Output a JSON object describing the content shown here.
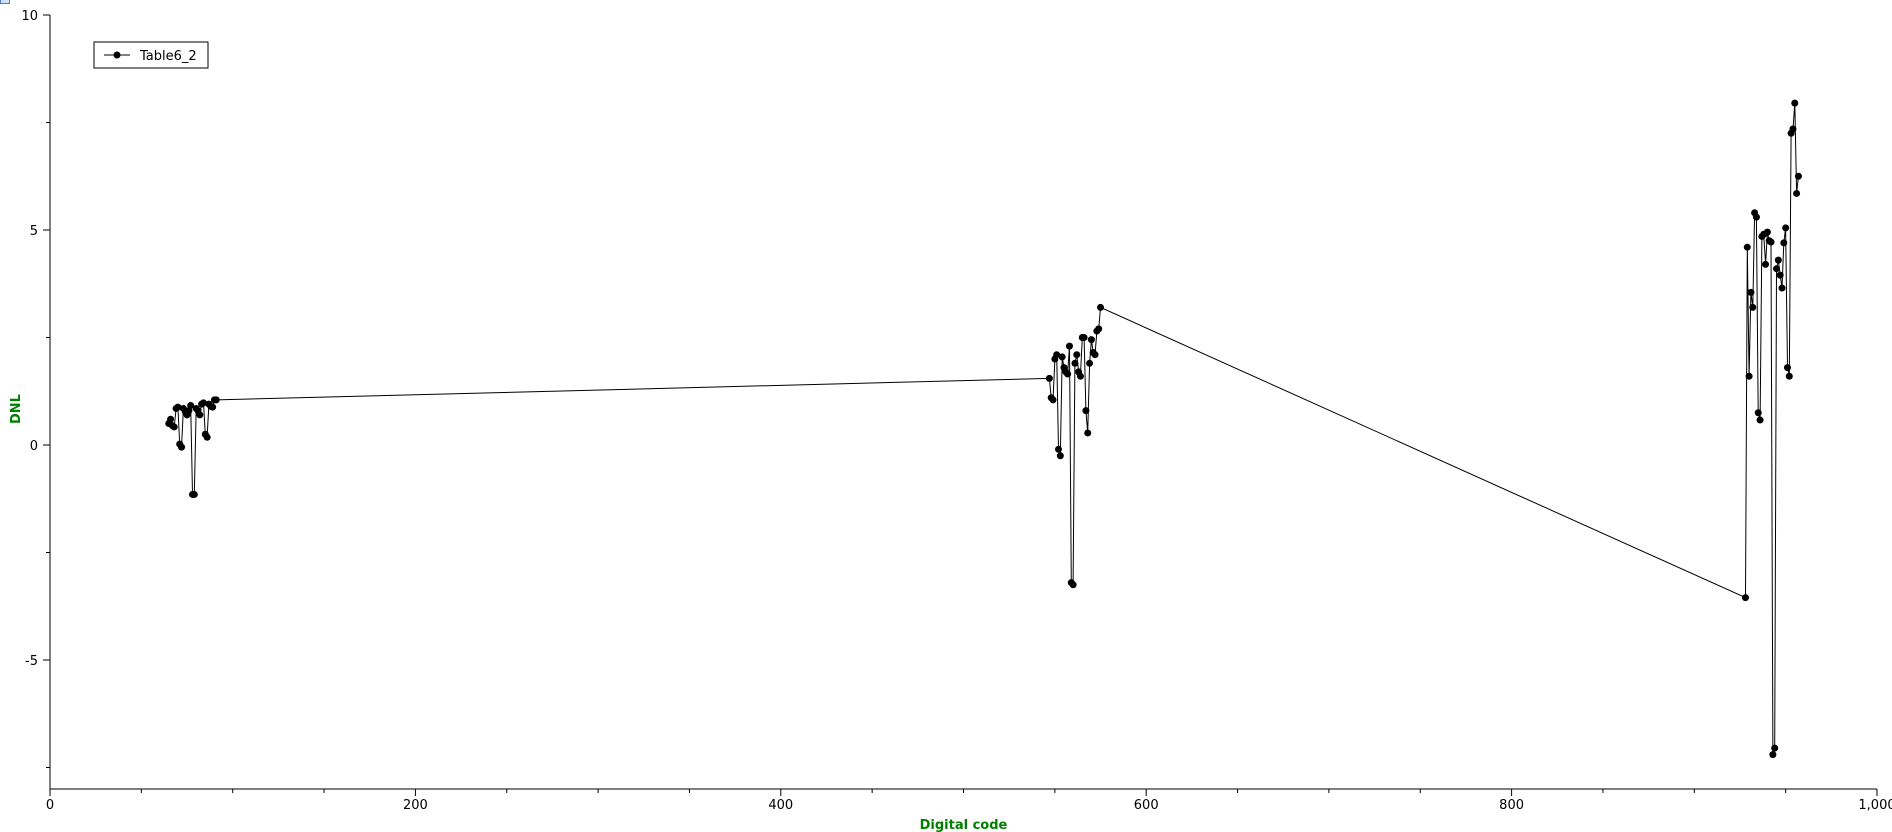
{
  "chart_data": {
    "type": "line",
    "title": "",
    "xlabel": "Digital code",
    "ylabel": "DNL",
    "xlim": [
      0,
      1000
    ],
    "ylim": [
      -8,
      10
    ],
    "x_ticks": [
      0,
      200,
      400,
      600,
      800,
      1000
    ],
    "x_tick_labels": [
      "0",
      "200",
      "400",
      "600",
      "800",
      "1,000"
    ],
    "y_ticks": [
      -5,
      0,
      5,
      10
    ],
    "y_tick_labels": [
      "-5",
      "0",
      "5",
      "10"
    ],
    "grid": false,
    "legend_position": "top-left",
    "series": [
      {
        "name": "Table6_2",
        "color": "#000000",
        "marker": "circle",
        "points": [
          [
            65,
            0.5
          ],
          [
            66,
            0.6
          ],
          [
            67,
            0.45
          ],
          [
            68,
            0.42
          ],
          [
            69,
            0.85
          ],
          [
            70,
            0.88
          ],
          [
            71,
            0.02
          ],
          [
            72,
            -0.05
          ],
          [
            73,
            0.85
          ],
          [
            74,
            0.78
          ],
          [
            75,
            0.7
          ],
          [
            76,
            0.8
          ],
          [
            77,
            0.92
          ],
          [
            78,
            -1.15
          ],
          [
            79,
            -1.15
          ],
          [
            80,
            0.85
          ],
          [
            81,
            0.8
          ],
          [
            82,
            0.7
          ],
          [
            83,
            0.95
          ],
          [
            84,
            0.98
          ],
          [
            85,
            0.25
          ],
          [
            86,
            0.18
          ],
          [
            87,
            0.95
          ],
          [
            88,
            0.9
          ],
          [
            89,
            0.88
          ],
          [
            90,
            1.05
          ],
          [
            91,
            1.05
          ],
          [
            547,
            1.55
          ],
          [
            548,
            1.1
          ],
          [
            549,
            1.05
          ],
          [
            550,
            2.0
          ],
          [
            551,
            2.1
          ],
          [
            552,
            -0.1
          ],
          [
            553,
            -0.25
          ],
          [
            554,
            2.05
          ],
          [
            555,
            1.8
          ],
          [
            556,
            1.7
          ],
          [
            557,
            1.65
          ],
          [
            558,
            2.3
          ],
          [
            559,
            -3.2
          ],
          [
            560,
            -3.25
          ],
          [
            561,
            1.9
          ],
          [
            562,
            2.1
          ],
          [
            563,
            1.7
          ],
          [
            564,
            1.6
          ],
          [
            565,
            2.5
          ],
          [
            566,
            2.5
          ],
          [
            567,
            0.8
          ],
          [
            568,
            0.28
          ],
          [
            569,
            1.9
          ],
          [
            570,
            2.45
          ],
          [
            571,
            2.15
          ],
          [
            572,
            2.1
          ],
          [
            573,
            2.65
          ],
          [
            574,
            2.7
          ],
          [
            575,
            3.2
          ],
          [
            928,
            -3.55
          ],
          [
            929,
            4.6
          ],
          [
            930,
            1.6
          ],
          [
            931,
            3.55
          ],
          [
            932,
            3.2
          ],
          [
            933,
            5.4
          ],
          [
            934,
            5.3
          ],
          [
            935,
            0.75
          ],
          [
            936,
            0.58
          ],
          [
            937,
            4.85
          ],
          [
            938,
            4.9
          ],
          [
            939,
            4.2
          ],
          [
            940,
            4.95
          ],
          [
            941,
            4.75
          ],
          [
            942,
            4.72
          ],
          [
            943,
            -7.2
          ],
          [
            944,
            -7.05
          ],
          [
            945,
            4.1
          ],
          [
            946,
            4.3
          ],
          [
            947,
            3.95
          ],
          [
            948,
            3.65
          ],
          [
            949,
            4.7
          ],
          [
            950,
            5.05
          ],
          [
            951,
            1.8
          ],
          [
            952,
            1.6
          ],
          [
            953,
            7.25
          ],
          [
            954,
            7.35
          ],
          [
            955,
            7.95
          ],
          [
            956,
            5.85
          ],
          [
            957,
            6.25
          ]
        ]
      }
    ]
  }
}
